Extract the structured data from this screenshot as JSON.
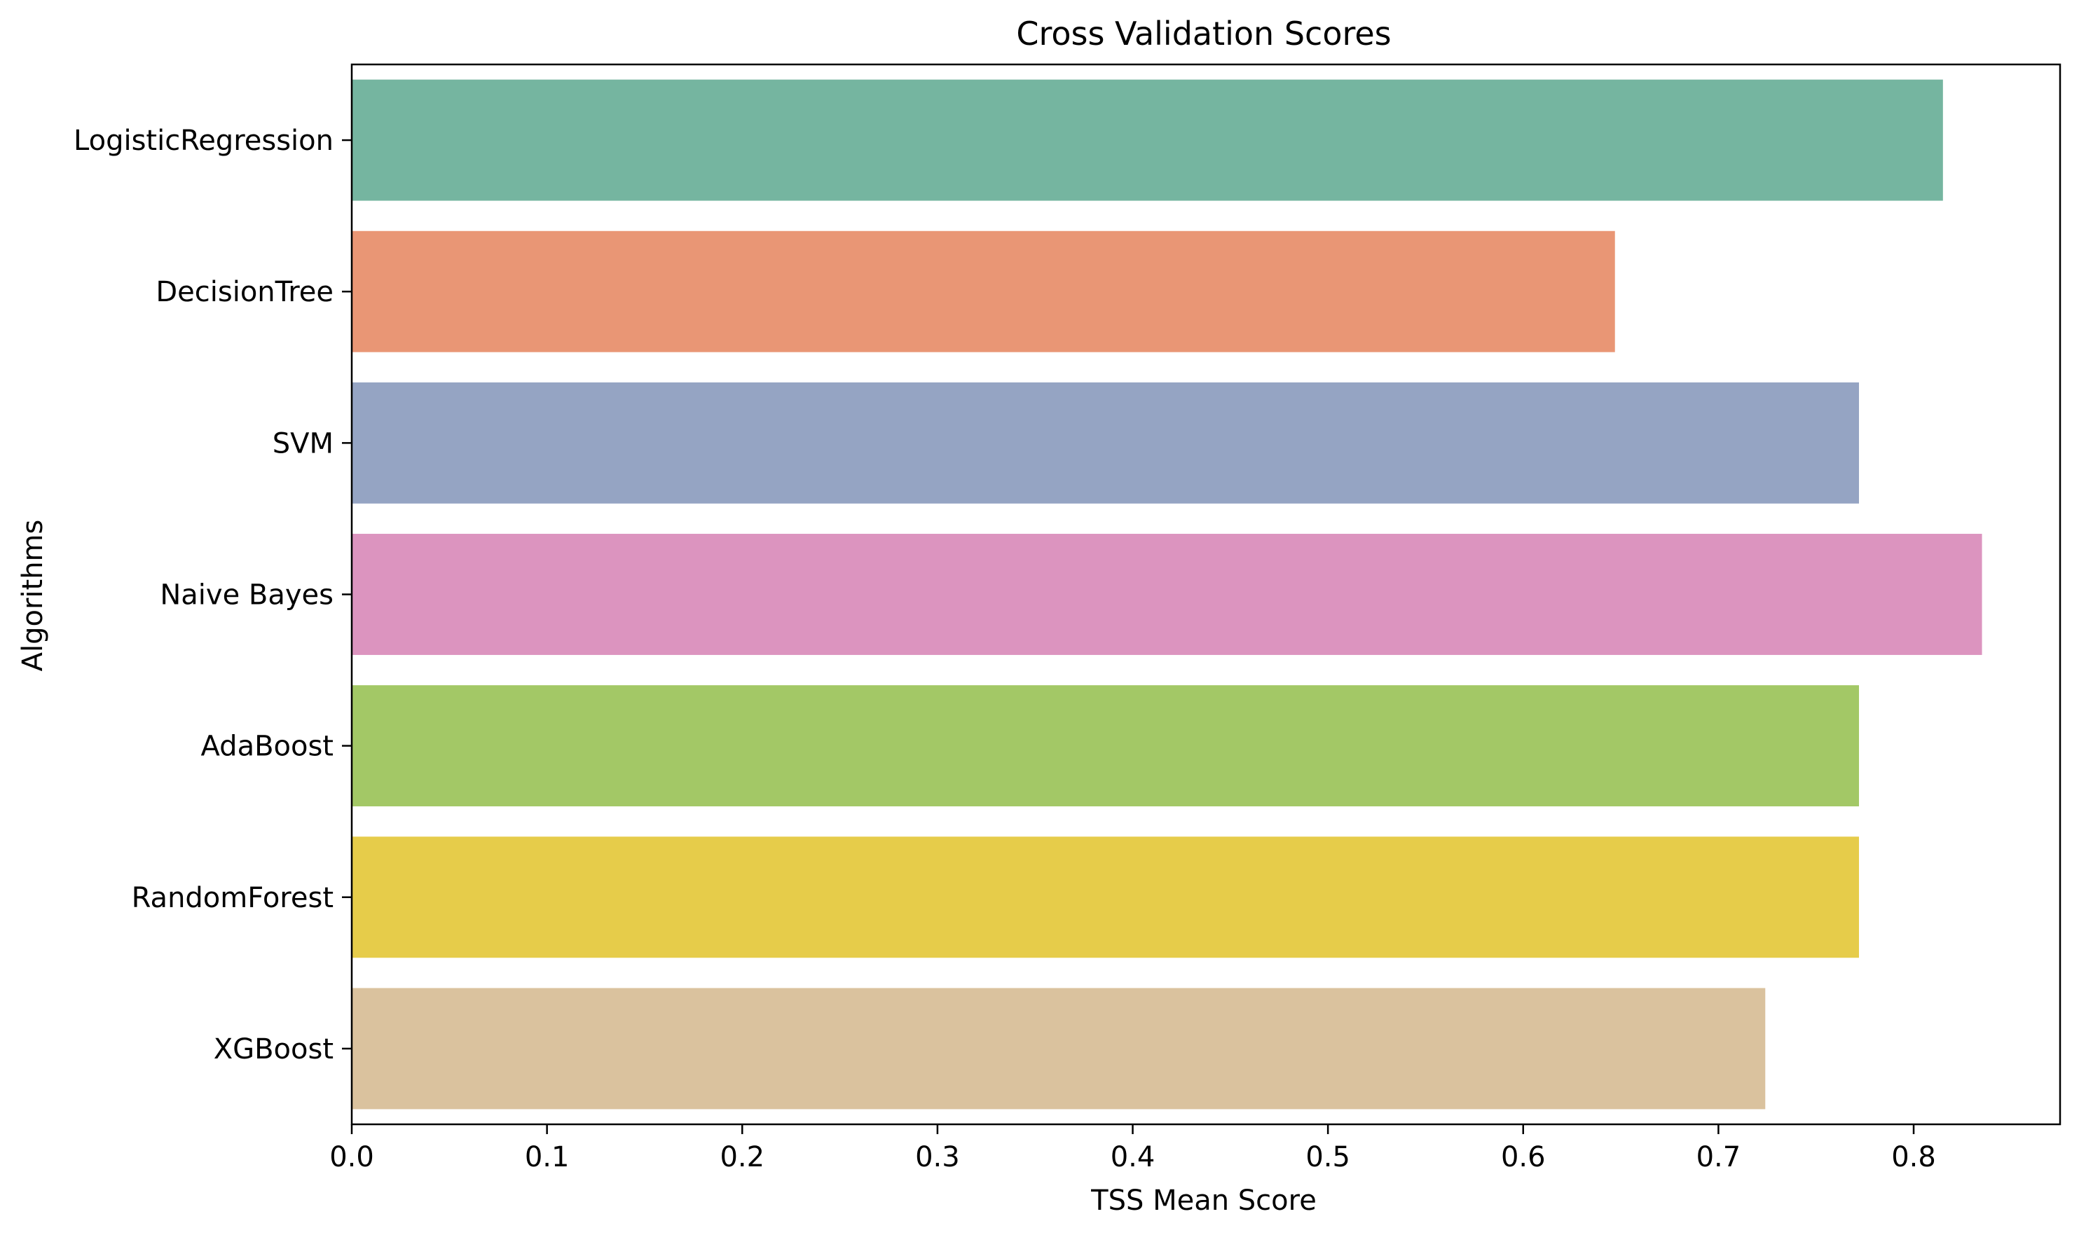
{
  "chart_data": {
    "type": "bar",
    "orientation": "horizontal",
    "title": "Cross Validation Scores",
    "xlabel": "TSS Mean Score",
    "ylabel": "Algorithms",
    "categories": [
      "LogisticRegression",
      "DecisionTree",
      "SVM",
      "Naive Bayes",
      "AdaBoost",
      "RandomForest",
      "XGBoost"
    ],
    "values": [
      0.815,
      0.647,
      0.772,
      0.835,
      0.772,
      0.772,
      0.724
    ],
    "colors": [
      "#75b5a0",
      "#e99675",
      "#95a4c3",
      "#dc94bf",
      "#a3c866",
      "#e6cc4a",
      "#dac29e"
    ],
    "xlim": [
      0.0,
      0.875
    ],
    "xticks": [
      0.0,
      0.1,
      0.2,
      0.3,
      0.4,
      0.5,
      0.6,
      0.7,
      0.8
    ],
    "xtick_labels": [
      "0.0",
      "0.1",
      "0.2",
      "0.3",
      "0.4",
      "0.5",
      "0.6",
      "0.7",
      "0.8"
    ],
    "grid": false,
    "legend": "none"
  }
}
